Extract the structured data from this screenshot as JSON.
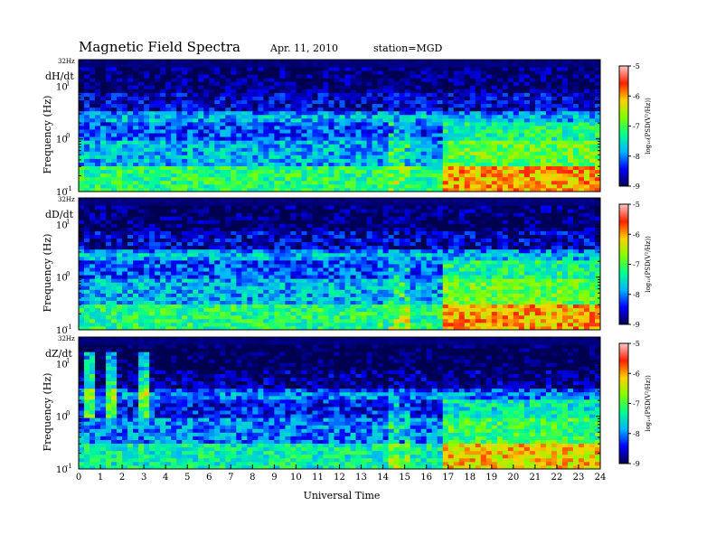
{
  "header": {
    "title": "Magnetic  Field  Spectra",
    "date": "Apr. 11, 2010",
    "station": "station=MGD"
  },
  "chart_data": {
    "type": "heatmap",
    "x_label": "Universal Time",
    "x_ticks": [
      "0",
      "1",
      "2",
      "3",
      "4",
      "5",
      "6",
      "7",
      "8",
      "9",
      "10",
      "11",
      "12",
      "13",
      "14",
      "15",
      "16",
      "17",
      "18",
      "19",
      "20",
      "21",
      "22",
      "23",
      "24"
    ],
    "xlim": [
      0,
      24
    ],
    "y_label": "Frequency  (Hz)",
    "y_scale": "log",
    "ylim": [
      0.1,
      32
    ],
    "y_top_label": "32Hz",
    "y_ticks": [
      {
        "base": "10",
        "exp": "1",
        "value": 10
      },
      {
        "base": "10",
        "exp": "0",
        "value": 1
      },
      {
        "base": "10",
        "exp": "-1",
        "value": 0.1
      }
    ],
    "colorbar": {
      "label": "log₁₀(PSD(V²/Hz))",
      "range": [
        -9,
        -5
      ],
      "ticks": [
        "-5",
        "-6",
        "-7",
        "-8",
        "-9"
      ],
      "colormap": [
        "#000050",
        "#0000ff",
        "#00b4ff",
        "#00ff90",
        "#80ff00",
        "#ffd000",
        "#ff2000",
        "#ffc8c8"
      ]
    },
    "panels": [
      {
        "component": "dH/dt"
      },
      {
        "component": "dD/dt"
      },
      {
        "component": "dZ/dt"
      }
    ]
  }
}
